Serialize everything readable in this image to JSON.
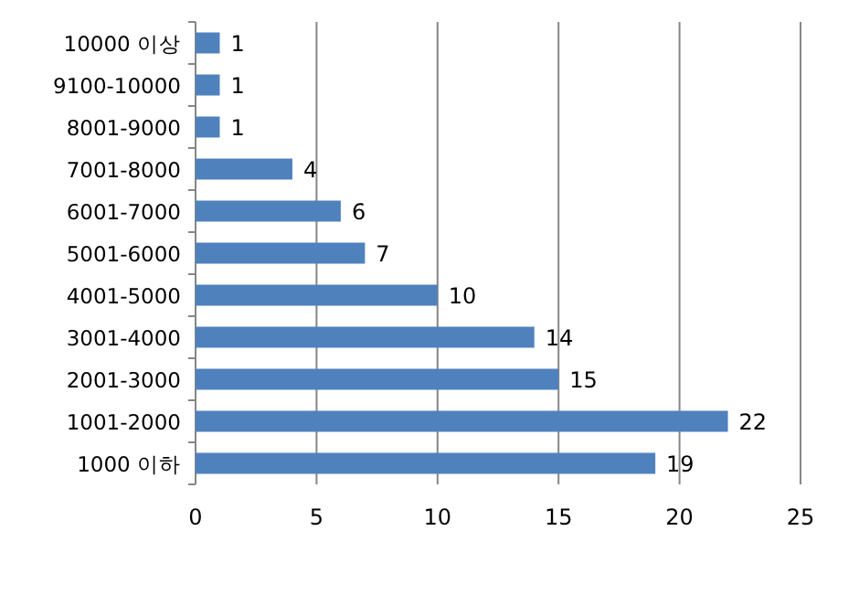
{
  "chart_data": {
    "type": "bar",
    "orientation": "horizontal",
    "categories": [
      "10000 이상",
      "9100-10000",
      "8001-9000",
      "7001-8000",
      "6001-7000",
      "5001-6000",
      "4001-5000",
      "3001-4000",
      "2001-3000",
      "1001-2000",
      "1000 이하"
    ],
    "values": [
      1,
      1,
      1,
      4,
      6,
      7,
      10,
      14,
      15,
      22,
      19
    ],
    "color": "#4f81bd",
    "xlim": [
      0,
      25
    ],
    "xticks": [
      0,
      5,
      10,
      15,
      20,
      25
    ],
    "grid": "x",
    "data_labels": true
  }
}
